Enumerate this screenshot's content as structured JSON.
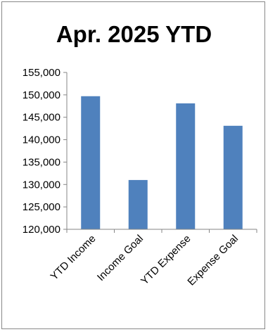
{
  "chart_data": {
    "type": "bar",
    "title": "Apr. 2025 YTD",
    "categories": [
      "YTD Income",
      "Income Goal",
      "YTD Expense",
      "Expense Goal"
    ],
    "values": [
      149700,
      131000,
      148100,
      143100
    ],
    "ylim": [
      120000,
      155000
    ],
    "yticks": [
      120000,
      125000,
      130000,
      135000,
      140000,
      145000,
      150000,
      155000
    ],
    "ytick_labels": [
      "120,000",
      "125,000",
      "130,000",
      "135,000",
      "140,000",
      "145,000",
      "150,000",
      "155,000"
    ],
    "bar_color": "#4F81BD",
    "grid": false,
    "legend": "none"
  }
}
